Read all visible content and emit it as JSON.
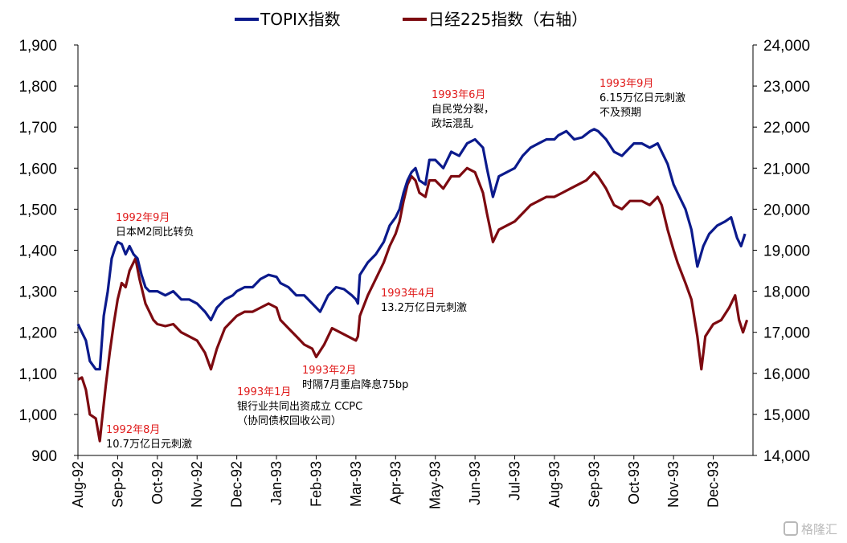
{
  "chart_data": {
    "type": "line",
    "legend_position": "top",
    "grid": false,
    "x_labels": [
      "Aug-92",
      "Sep-92",
      "Oct-92",
      "Nov-92",
      "Dec-92",
      "Jan-93",
      "Feb-93",
      "Mar-93",
      "Apr-93",
      "May-93",
      "Jun-93",
      "Jul-93",
      "Aug-93",
      "Sep-93",
      "Oct-93",
      "Nov-93",
      "Dec-93"
    ],
    "y_left": {
      "range": [
        900,
        1900
      ],
      "ticks": [
        "900",
        "1,000",
        "1,100",
        "1,200",
        "1,300",
        "1,400",
        "1,500",
        "1,600",
        "1,700",
        "1,800",
        "1,900"
      ]
    },
    "y_right": {
      "range": [
        14000,
        24000
      ],
      "ticks": [
        "14,000",
        "15,000",
        "16,000",
        "17,000",
        "18,000",
        "19,000",
        "20,000",
        "21,000",
        "22,000",
        "23,000",
        "24,000"
      ]
    },
    "series": [
      {
        "name": "TOPIX指数",
        "axis": "left",
        "color": "#0b1a8c",
        "points": [
          [
            0,
            1220
          ],
          [
            0.1,
            1200
          ],
          [
            0.2,
            1180
          ],
          [
            0.3,
            1130
          ],
          [
            0.45,
            1110
          ],
          [
            0.55,
            1110
          ],
          [
            0.65,
            1240
          ],
          [
            0.75,
            1300
          ],
          [
            0.85,
            1380
          ],
          [
            0.95,
            1410
          ],
          [
            1.0,
            1420
          ],
          [
            1.1,
            1415
          ],
          [
            1.2,
            1390
          ],
          [
            1.3,
            1410
          ],
          [
            1.4,
            1390
          ],
          [
            1.5,
            1380
          ],
          [
            1.6,
            1340
          ],
          [
            1.7,
            1310
          ],
          [
            1.8,
            1300
          ],
          [
            1.9,
            1300
          ],
          [
            2.0,
            1300
          ],
          [
            2.2,
            1290
          ],
          [
            2.4,
            1300
          ],
          [
            2.6,
            1280
          ],
          [
            2.8,
            1280
          ],
          [
            3.0,
            1270
          ],
          [
            3.2,
            1250
          ],
          [
            3.35,
            1230
          ],
          [
            3.5,
            1260
          ],
          [
            3.7,
            1280
          ],
          [
            3.9,
            1290
          ],
          [
            4.0,
            1300
          ],
          [
            4.2,
            1310
          ],
          [
            4.4,
            1310
          ],
          [
            4.6,
            1330
          ],
          [
            4.8,
            1340
          ],
          [
            5.0,
            1335
          ],
          [
            5.1,
            1320
          ],
          [
            5.3,
            1310
          ],
          [
            5.5,
            1290
          ],
          [
            5.7,
            1290
          ],
          [
            5.9,
            1270
          ],
          [
            6.0,
            1260
          ],
          [
            6.1,
            1250
          ],
          [
            6.3,
            1290
          ],
          [
            6.5,
            1310
          ],
          [
            6.7,
            1305
          ],
          [
            6.9,
            1290
          ],
          [
            7.0,
            1280
          ],
          [
            7.05,
            1270
          ],
          [
            7.1,
            1340
          ],
          [
            7.3,
            1370
          ],
          [
            7.5,
            1390
          ],
          [
            7.7,
            1420
          ],
          [
            7.85,
            1460
          ],
          [
            8.0,
            1480
          ],
          [
            8.1,
            1500
          ],
          [
            8.2,
            1540
          ],
          [
            8.3,
            1570
          ],
          [
            8.4,
            1590
          ],
          [
            8.5,
            1600
          ],
          [
            8.6,
            1570
          ],
          [
            8.75,
            1560
          ],
          [
            8.85,
            1620
          ],
          [
            9.0,
            1620
          ],
          [
            9.2,
            1600
          ],
          [
            9.4,
            1640
          ],
          [
            9.6,
            1630
          ],
          [
            9.8,
            1660
          ],
          [
            10.0,
            1670
          ],
          [
            10.2,
            1650
          ],
          [
            10.3,
            1600
          ],
          [
            10.45,
            1530
          ],
          [
            10.6,
            1580
          ],
          [
            10.8,
            1590
          ],
          [
            11.0,
            1600
          ],
          [
            11.2,
            1630
          ],
          [
            11.4,
            1650
          ],
          [
            11.6,
            1660
          ],
          [
            11.8,
            1670
          ],
          [
            12.0,
            1670
          ],
          [
            12.1,
            1680
          ],
          [
            12.3,
            1690
          ],
          [
            12.5,
            1670
          ],
          [
            12.7,
            1675
          ],
          [
            12.9,
            1690
          ],
          [
            13.0,
            1695
          ],
          [
            13.1,
            1690
          ],
          [
            13.3,
            1670
          ],
          [
            13.5,
            1640
          ],
          [
            13.7,
            1630
          ],
          [
            13.9,
            1650
          ],
          [
            14.0,
            1660
          ],
          [
            14.2,
            1660
          ],
          [
            14.4,
            1650
          ],
          [
            14.6,
            1660
          ],
          [
            14.7,
            1640
          ],
          [
            14.85,
            1610
          ],
          [
            15.0,
            1560
          ],
          [
            15.1,
            1540
          ],
          [
            15.3,
            1500
          ],
          [
            15.45,
            1450
          ],
          [
            15.6,
            1360
          ],
          [
            15.75,
            1410
          ],
          [
            15.9,
            1440
          ],
          [
            16.1,
            1460
          ],
          [
            16.3,
            1470
          ],
          [
            16.45,
            1480
          ],
          [
            16.6,
            1430
          ],
          [
            16.7,
            1410
          ],
          [
            16.8,
            1440
          ]
        ]
      },
      {
        "name": "日经225指数（右轴）",
        "axis": "right",
        "color": "#7d0a10",
        "points": [
          [
            0,
            15850
          ],
          [
            0.1,
            15900
          ],
          [
            0.2,
            15600
          ],
          [
            0.3,
            15000
          ],
          [
            0.45,
            14900
          ],
          [
            0.55,
            14350
          ],
          [
            0.6,
            14800
          ],
          [
            0.7,
            15700
          ],
          [
            0.8,
            16500
          ],
          [
            0.9,
            17200
          ],
          [
            1.0,
            17800
          ],
          [
            1.1,
            18200
          ],
          [
            1.2,
            18100
          ],
          [
            1.3,
            18500
          ],
          [
            1.45,
            18800
          ],
          [
            1.55,
            18300
          ],
          [
            1.7,
            17700
          ],
          [
            1.9,
            17300
          ],
          [
            2.0,
            17200
          ],
          [
            2.2,
            17150
          ],
          [
            2.4,
            17200
          ],
          [
            2.6,
            17000
          ],
          [
            2.8,
            16900
          ],
          [
            3.0,
            16800
          ],
          [
            3.2,
            16500
          ],
          [
            3.35,
            16100
          ],
          [
            3.5,
            16600
          ],
          [
            3.7,
            17100
          ],
          [
            3.9,
            17300
          ],
          [
            4.0,
            17400
          ],
          [
            4.2,
            17500
          ],
          [
            4.4,
            17500
          ],
          [
            4.6,
            17600
          ],
          [
            4.8,
            17700
          ],
          [
            5.0,
            17600
          ],
          [
            5.1,
            17300
          ],
          [
            5.3,
            17100
          ],
          [
            5.5,
            16900
          ],
          [
            5.7,
            16700
          ],
          [
            5.9,
            16600
          ],
          [
            6.0,
            16400
          ],
          [
            6.2,
            16700
          ],
          [
            6.4,
            17100
          ],
          [
            6.6,
            17000
          ],
          [
            6.8,
            16900
          ],
          [
            7.0,
            16800
          ],
          [
            7.05,
            16900
          ],
          [
            7.1,
            17400
          ],
          [
            7.3,
            17900
          ],
          [
            7.5,
            18300
          ],
          [
            7.7,
            18700
          ],
          [
            7.85,
            19100
          ],
          [
            8.0,
            19400
          ],
          [
            8.1,
            19700
          ],
          [
            8.2,
            20200
          ],
          [
            8.3,
            20600
          ],
          [
            8.4,
            20800
          ],
          [
            8.5,
            20700
          ],
          [
            8.6,
            20400
          ],
          [
            8.75,
            20300
          ],
          [
            8.85,
            20700
          ],
          [
            9.0,
            20700
          ],
          [
            9.2,
            20500
          ],
          [
            9.4,
            20800
          ],
          [
            9.6,
            20800
          ],
          [
            9.8,
            21000
          ],
          [
            10.0,
            20900
          ],
          [
            10.2,
            20400
          ],
          [
            10.3,
            19900
          ],
          [
            10.45,
            19200
          ],
          [
            10.6,
            19500
          ],
          [
            10.8,
            19600
          ],
          [
            11.0,
            19700
          ],
          [
            11.2,
            19900
          ],
          [
            11.4,
            20100
          ],
          [
            11.6,
            20200
          ],
          [
            11.8,
            20300
          ],
          [
            12.0,
            20300
          ],
          [
            12.2,
            20400
          ],
          [
            12.4,
            20500
          ],
          [
            12.6,
            20600
          ],
          [
            12.8,
            20700
          ],
          [
            13.0,
            20900
          ],
          [
            13.1,
            20800
          ],
          [
            13.3,
            20500
          ],
          [
            13.5,
            20100
          ],
          [
            13.7,
            20000
          ],
          [
            13.9,
            20200
          ],
          [
            14.0,
            20200
          ],
          [
            14.2,
            20200
          ],
          [
            14.4,
            20100
          ],
          [
            14.6,
            20300
          ],
          [
            14.7,
            20100
          ],
          [
            14.85,
            19500
          ],
          [
            15.0,
            19000
          ],
          [
            15.1,
            18700
          ],
          [
            15.3,
            18200
          ],
          [
            15.45,
            17800
          ],
          [
            15.6,
            16900
          ],
          [
            15.7,
            16100
          ],
          [
            15.8,
            16900
          ],
          [
            16.0,
            17200
          ],
          [
            16.2,
            17300
          ],
          [
            16.4,
            17600
          ],
          [
            16.55,
            17900
          ],
          [
            16.65,
            17300
          ],
          [
            16.75,
            17000
          ],
          [
            16.85,
            17300
          ]
        ]
      }
    ]
  },
  "annotations": [
    {
      "date": "1992年8月",
      "lines": [
        "10.7万亿日元刺激"
      ]
    },
    {
      "date": "1992年9月",
      "lines": [
        "日本M2同比转负"
      ]
    },
    {
      "date": "1993年1月",
      "lines": [
        "银行业共同出资成立 CCPC",
        "（协同债权回收公司）"
      ]
    },
    {
      "date": "1993年2月",
      "lines": [
        "时隔7月重启降息75bp"
      ]
    },
    {
      "date": "1993年4月",
      "lines": [
        "13.2万亿日元刺激"
      ]
    },
    {
      "date": "1993年6月",
      "lines": [
        "自民党分裂，",
        "政坛混乱"
      ]
    },
    {
      "date": "1993年9月",
      "lines": [
        "6.15万亿日元刺激",
        "不及预期"
      ]
    }
  ],
  "watermark": "格隆汇"
}
